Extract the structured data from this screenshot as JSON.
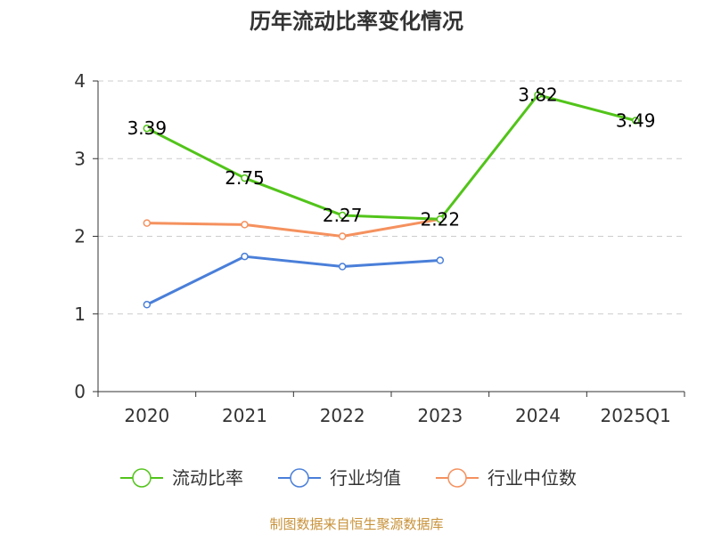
{
  "chart_data": {
    "type": "line",
    "title": "历年流动比率变化情况",
    "categories": [
      "2020",
      "2021",
      "2022",
      "2023",
      "2024",
      "2025Q1"
    ],
    "y_ticks": [
      "0",
      "1",
      "2",
      "3",
      "4"
    ],
    "ylim": [
      0,
      4
    ],
    "grid": true,
    "legend_position": "bottom",
    "series": [
      {
        "name": "流动比率",
        "color": "#52c41a",
        "values": [
          3.39,
          2.75,
          2.27,
          2.22,
          3.82,
          3.49
        ],
        "labels": [
          "3.39",
          "2.75",
          "2.27",
          "2.22",
          "3.82",
          "3.49"
        ]
      },
      {
        "name": "行业均值",
        "color": "#4a7fd9",
        "values": [
          1.12,
          1.74,
          1.61,
          1.69,
          null,
          null
        ]
      },
      {
        "name": "行业中位数",
        "color": "#f5915e",
        "values": [
          2.17,
          2.15,
          2.0,
          2.22,
          null,
          null
        ]
      }
    ],
    "source": "制图数据来自恒生聚源数据库"
  }
}
